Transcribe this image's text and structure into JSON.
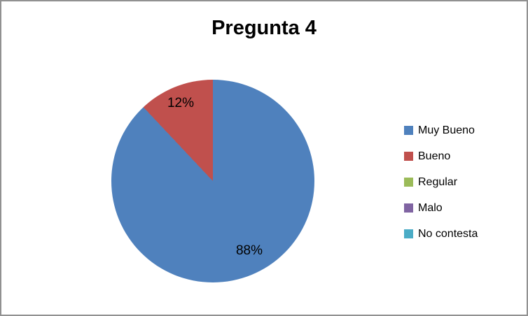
{
  "frame": {
    "background_color": "#FFFFFF",
    "border_color": "#919191"
  },
  "chart_data": {
    "type": "pie",
    "title": "Pregunta 4",
    "categories": [
      "Muy Bueno",
      "Bueno",
      "Regular",
      "Malo",
      "No contesta"
    ],
    "values": [
      88,
      12,
      0,
      0,
      0
    ],
    "value_unit": "%",
    "colors": [
      "#4F81BD",
      "#C0504D",
      "#9BBB59",
      "#8064A2",
      "#4BACC6"
    ],
    "data_labels": [
      "88%",
      "12%"
    ],
    "legend_position": "right",
    "start_angle_deg": 0,
    "direction": "clockwise"
  }
}
